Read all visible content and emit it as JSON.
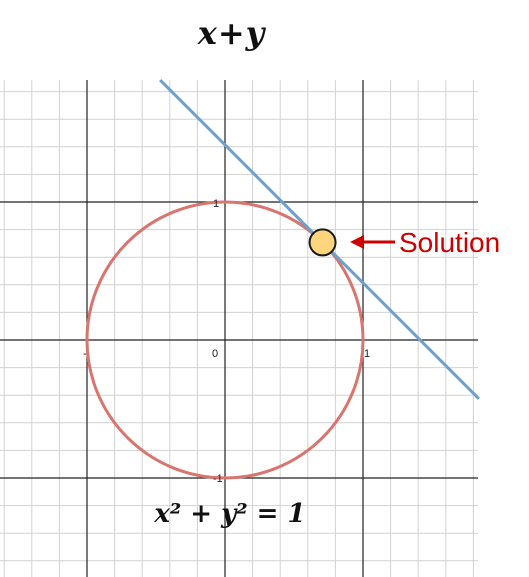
{
  "title": {
    "x": "x",
    "plus": "+",
    "y": "y"
  },
  "equation": {
    "lhs": "x² + y² = 1"
  },
  "annotation": "Solution",
  "tick_labels": {
    "neg_one": "-",
    "zero": "0",
    "one_y": "1",
    "neg_one_y": "-1",
    "one_x": "1"
  },
  "colors": {
    "circle": "#d9756f",
    "line": "#6e9fd0",
    "solution_fill": "#fcd57c",
    "annotation": "#cc0000",
    "major_grid": "#222222",
    "minor_grid": "#d2d2d2"
  },
  "chart_data": {
    "type": "line",
    "series": [
      {
        "shape": "circle",
        "equation_text": "x^2 + y^2 = 1",
        "center": [
          0,
          0
        ],
        "radius": 1
      },
      {
        "shape": "line",
        "slope": -1,
        "intercept": 1.414
      }
    ],
    "solution_point": [
      0.707,
      0.707
    ],
    "xlim": [
      -1.6,
      1.85
    ],
    "ylim": [
      -1.7,
      1.85
    ],
    "grid": true
  }
}
